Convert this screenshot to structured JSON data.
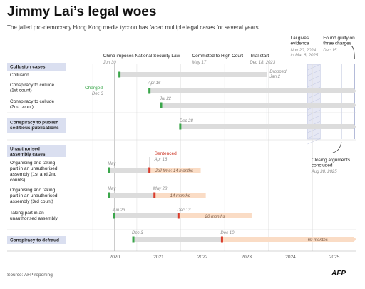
{
  "title": "Jimmy Lai’s legal woes",
  "subtitle": "The jailed pro-democracy Hong Kong media tycoon has faced multiple legal cases for several years",
  "source": "Source: AFP reporting",
  "logo_text": "AFP",
  "chart_data": {
    "type": "timeline",
    "x_axis": {
      "type": "date",
      "range": [
        "2019-06-01",
        "2025-12-31"
      ],
      "ticks": [
        "2020",
        "2021",
        "2022",
        "2023",
        "2024",
        "2025"
      ]
    },
    "colors": {
      "neutral_bar": "#dcdcdc",
      "sentence_bar": "#fadcc5",
      "charge_marker": "#3aa64a",
      "sentence_marker": "#d93b2b",
      "event_line": "#9aa4cc",
      "category_fill": "#dadff0",
      "label_red": "#cc3322",
      "date_grey": "#8a8a8a"
    },
    "events": [
      {
        "label": "China imposes National Security Law",
        "date_label": "Jun 30",
        "date": "2020-06-30"
      },
      {
        "label": "Committed to High Court",
        "date_label": "May 17",
        "date": "2022-05-17"
      },
      {
        "label": "Trial start",
        "date_label": "Dec 18, 2023",
        "date": "2023-12-18"
      },
      {
        "label": "Lai gives evidence",
        "date_label": "Nov 20, 2024 to Mar 6, 2025",
        "start": "2024-11-20",
        "end": "2025-03-06"
      },
      {
        "label": "Found guilty on three charges",
        "date_label": "Dec 15",
        "date": "2025-12-15"
      },
      {
        "label": "Closing arguments concluded",
        "date_label": "Aug 28, 2025",
        "date": "2025-08-28"
      }
    ],
    "categories": [
      {
        "name": "Collusion cases",
        "rows": [
          {
            "label": "Collusion",
            "start": "2020-08-10",
            "end": "2023-12-18",
            "marker": "charge",
            "end_note": "Dropped",
            "end_note_date": "Jan 2"
          },
          {
            "label": "Conspiracy to collude (1st count)",
            "start": "2021-04-16",
            "end": "2025-12-31",
            "marker": "charge",
            "start_date_label": "Apr 16"
          },
          {
            "label": "Conspiracy to collude (2nd count)",
            "start": "2021-07-22",
            "end": "2025-12-31",
            "marker": "charge",
            "start_date_label": "Jul 22"
          }
        ],
        "annotation": {
          "label": "Charged",
          "date_label": "Dec 3"
        }
      },
      {
        "name": "Conspiracy to publish seditious publications",
        "rows": [
          {
            "label": "",
            "start": "2021-12-28",
            "end": "2025-12-31",
            "marker": "charge",
            "start_date_label": "Dec 28"
          }
        ]
      },
      {
        "name": "Unauthorised assembly cases",
        "rows": [
          {
            "label": "Organising and taking part in an unauthorised assembly (1st and 2nd counts)",
            "start": "2020-05-15",
            "sentenced": "2021-04-16",
            "start_date_label": "May",
            "sentence_text": "Jail time: 14 months",
            "sentence_end": "2022-06-16"
          },
          {
            "label": "Organising and taking part in an unauthorised assembly (3rd count)",
            "start": "2020-05-15",
            "sentenced": "2021-05-28",
            "start_date_label": "May",
            "sentence_date_label": "May 28",
            "sentence_text": "14 months",
            "sentence_end": "2022-07-28"
          },
          {
            "label": "Taking part in an unauthorised assembly",
            "start": "2020-06-23",
            "sentenced": "2021-12-13",
            "start_date_label": "Jun 23",
            "sentence_date_label": "Dec 13",
            "sentence_text": "20 months",
            "sentence_end": "2023-08-13"
          }
        ],
        "annotation": {
          "label": "Sentenced",
          "date_label": "Apr 16"
        }
      },
      {
        "name": "Conspiracy to defraud",
        "rows": [
          {
            "label": "",
            "start": "2020-12-03",
            "sentenced": "2022-12-10",
            "start_date_label": "Dec 3",
            "sentence_date_label": "Dec 10",
            "sentence_text": "69 months",
            "sentence_end": "2025-12-31"
          }
        ]
      }
    ]
  }
}
